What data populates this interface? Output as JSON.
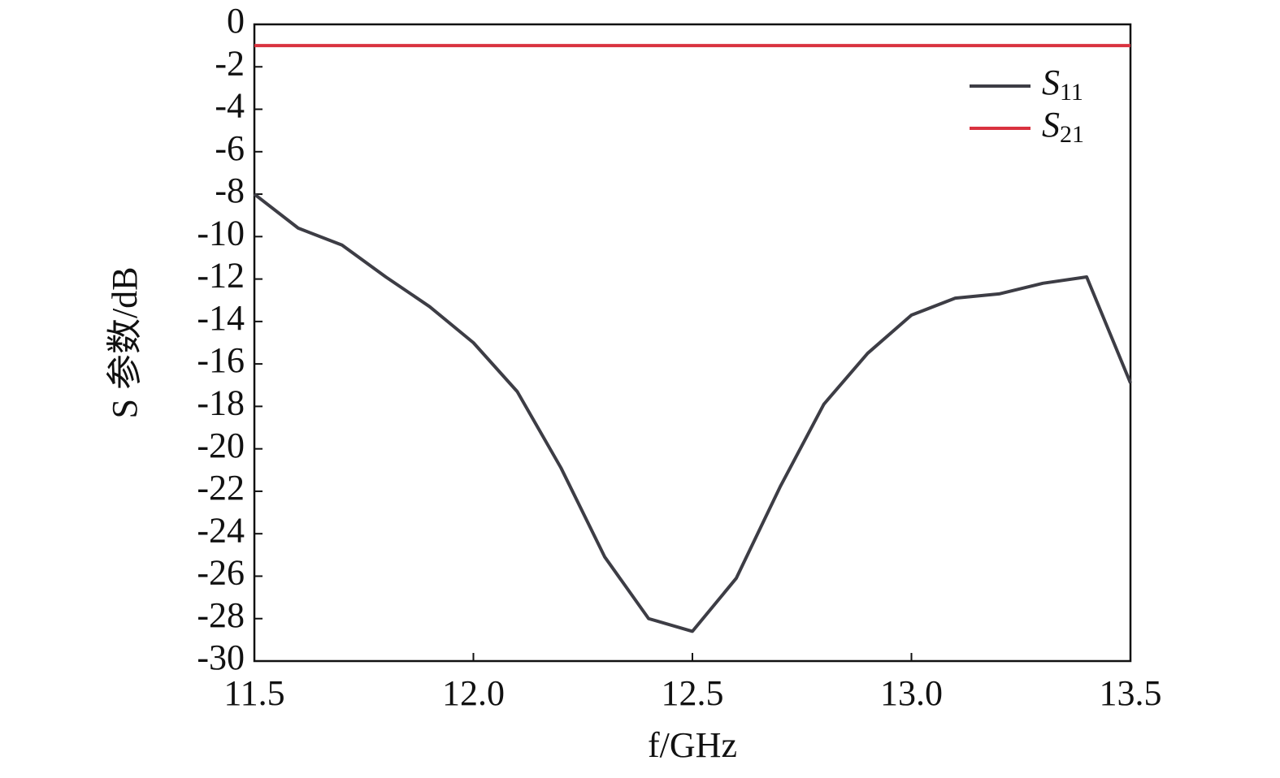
{
  "chart_data": {
    "type": "line",
    "x_label": "f/GHz",
    "y_label": "S 参数/dB",
    "x": [
      11.5,
      11.6,
      11.7,
      11.8,
      11.9,
      12.0,
      12.1,
      12.2,
      12.3,
      12.4,
      12.5,
      12.6,
      12.7,
      12.8,
      12.9,
      13.0,
      13.1,
      13.2,
      13.3,
      13.4,
      13.5
    ],
    "series": [
      {
        "name": "S11",
        "color": "#3d3d45",
        "values": [
          -8.0,
          -9.6,
          -10.4,
          -11.9,
          -13.3,
          -15.0,
          -17.3,
          -20.9,
          -25.1,
          -28.0,
          -28.6,
          -26.1,
          -21.8,
          -17.9,
          -15.5,
          -13.7,
          -12.9,
          -12.7,
          -12.2,
          -11.9,
          -16.9
        ]
      },
      {
        "name": "S21",
        "color": "#d9323f",
        "values": [
          -1.0,
          -1.0,
          -1.0,
          -1.0,
          -1.0,
          -1.0,
          -1.0,
          -1.0,
          -1.0,
          -1.0,
          -1.0,
          -1.0,
          -1.0,
          -1.0,
          -1.0,
          -1.0,
          -1.0,
          -1.0,
          -1.0,
          -1.0,
          -1.0
        ]
      }
    ],
    "xlim": [
      11.5,
      13.5
    ],
    "xticks": [
      11.5,
      {
        "value": 12,
        "label": "12.0"
      },
      12.5,
      {
        "value": 13,
        "label": "13.0"
      },
      13.5
    ],
    "ylim": [
      -30,
      0
    ],
    "yticks": [
      0,
      -2,
      -4,
      -6,
      -8,
      -10,
      -12,
      -14,
      -16,
      -18,
      -20,
      -22,
      -24,
      -26,
      -28,
      -30
    ],
    "legend": "upper right"
  }
}
